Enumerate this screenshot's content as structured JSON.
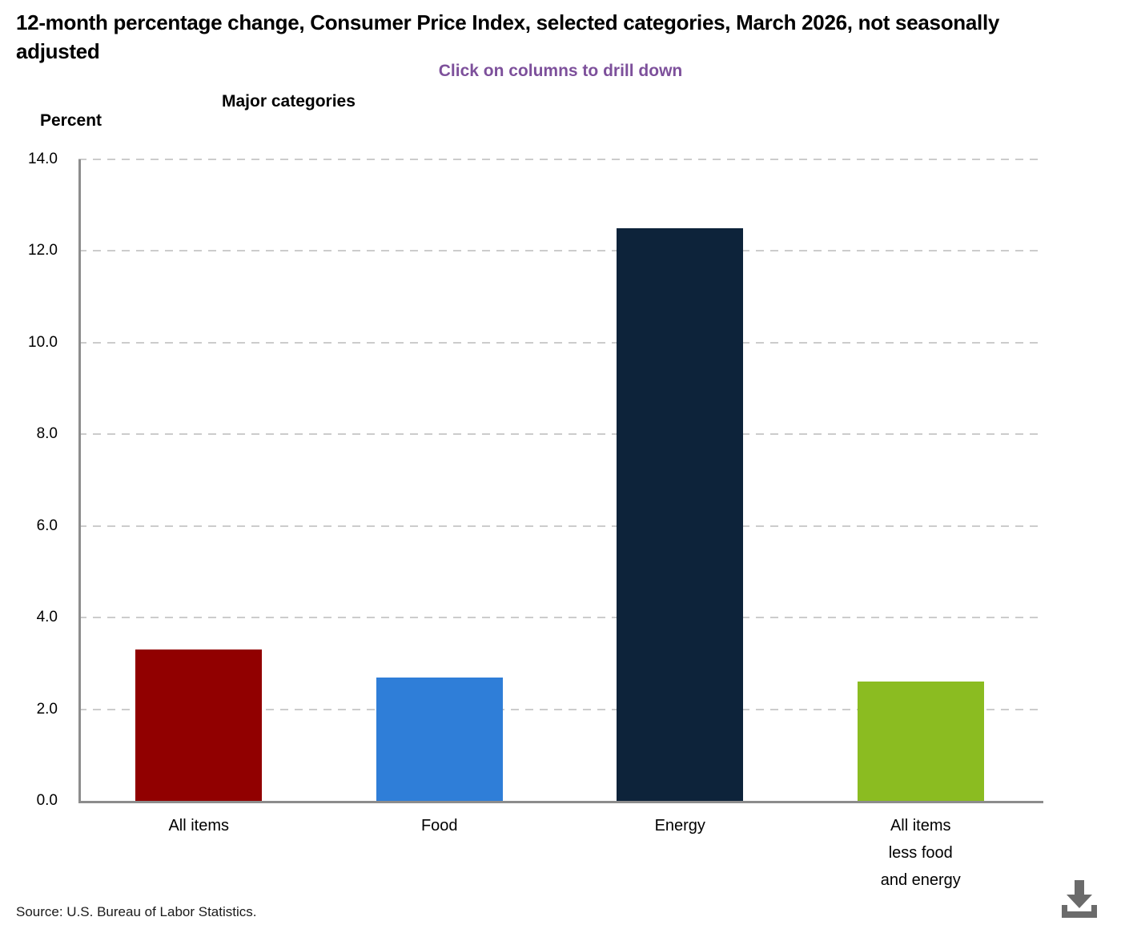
{
  "chart_data": {
    "type": "bar",
    "title": "12-month percentage change, Consumer Price Index, selected categories, March 2026, not seasonally adjusted",
    "subtitle": "Click on columns to drill down",
    "xlabel": "Major categories",
    "ylabel": "Percent",
    "categories": [
      "All items",
      "Food",
      "Energy",
      "All items\nless food\nand energy"
    ],
    "values": [
      3.3,
      2.7,
      12.5,
      2.6
    ],
    "bar_colors": [
      "#910000",
      "#2f7ed8",
      "#0d233a",
      "#8bbc21"
    ],
    "ylim": [
      0,
      14
    ],
    "ytick_step": 2,
    "ytick_labels": [
      "0.0",
      "2.0",
      "4.0",
      "6.0",
      "8.0",
      "10.0",
      "12.0",
      "14.0"
    ],
    "grid": "horizontal-dashed",
    "legend": "none"
  },
  "footer": {
    "source": "Source: U.S. Bureau of Labor Statistics.",
    "download_icon": "download-icon"
  },
  "theme": {
    "subtitle_color": "#7d509b",
    "grid_color": "#cccccc",
    "axis_color": "#8c8c8c",
    "icon_color": "#6b6b6b",
    "text_color": "#000000"
  }
}
